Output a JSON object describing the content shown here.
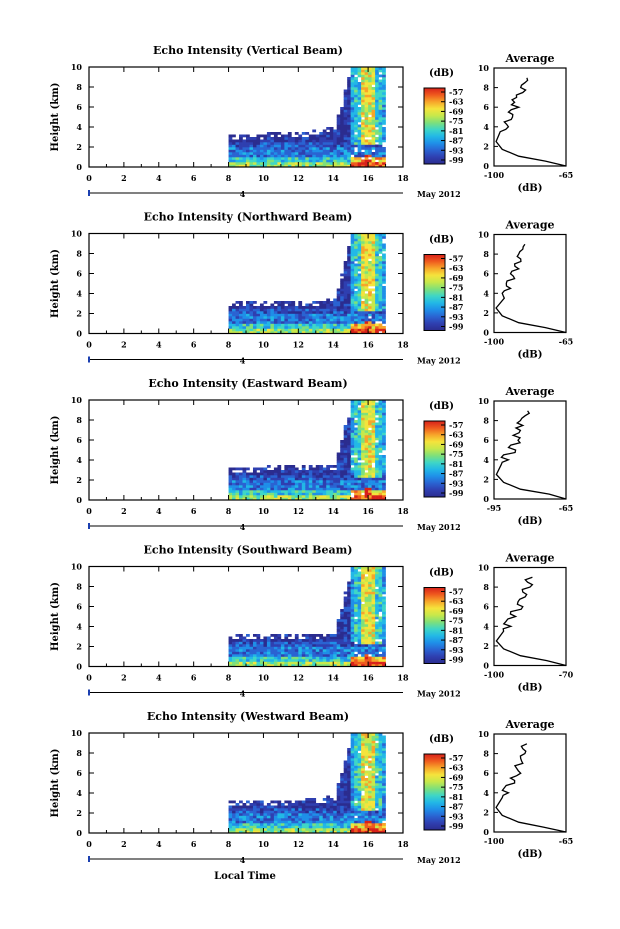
{
  "colors": {
    "colormap": [
      "#2b2c8f",
      "#2f3fb0",
      "#2a63d2",
      "#1f8fe8",
      "#22b8e6",
      "#3fd6c6",
      "#7fe07a",
      "#c7e84b",
      "#f5e33c",
      "#f7a52a",
      "#ef5a1e",
      "#d8211a"
    ]
  },
  "global": {
    "xlabel": "Local Time",
    "month_label": "May 2012",
    "xticks": [
      "0",
      "2",
      "4",
      "6",
      "8",
      "10",
      "12",
      "14",
      "16",
      "18"
    ],
    "day_marker": "4",
    "ylabel": "Height (km)",
    "yticks": [
      "0",
      "2",
      "4",
      "6",
      "8",
      "10"
    ],
    "cb_unit": "(dB)",
    "avg_title": "Average",
    "avg_xlabel": "(dB)"
  },
  "panels": [
    {
      "title": "Echo Intensity (Vertical Beam)",
      "cb_ticks": [
        "-57",
        "-63",
        "-69",
        "-75",
        "-81",
        "-87",
        "-93",
        "-99"
      ],
      "avg_xmin": "-100",
      "avg_xmax": "-65"
    },
    {
      "title": "Echo Intensity (Northward Beam)",
      "cb_ticks": [
        "-57",
        "-63",
        "-69",
        "-75",
        "-81",
        "-87",
        "-93",
        "-99"
      ],
      "avg_xmin": "-100",
      "avg_xmax": "-65"
    },
    {
      "title": "Echo Intensity (Eastward Beam)",
      "cb_ticks": [
        "-57",
        "-63",
        "-69",
        "-75",
        "-81",
        "-87",
        "-93",
        "-99"
      ],
      "avg_xmin": "-95",
      "avg_xmax": "-65"
    },
    {
      "title": "Echo Intensity (Southward Beam)",
      "cb_ticks": [
        "-57",
        "-63",
        "-69",
        "-75",
        "-81",
        "-87",
        "-93",
        "-99"
      ],
      "avg_xmin": "-100",
      "avg_xmax": "-70"
    },
    {
      "title": "Echo Intensity (Westward Beam)",
      "cb_ticks": [
        "-57",
        "-63",
        "-69",
        "-75",
        "-81",
        "-87",
        "-93",
        "-99"
      ],
      "avg_xmin": "-100",
      "avg_xmax": "-65"
    }
  ],
  "chart_data": [
    {
      "type": "heatmap",
      "title": "Echo Intensity (Vertical Beam)",
      "xlabel": "Local Time",
      "ylabel": "Height (km)",
      "xlim": [
        0,
        18
      ],
      "ylim": [
        0,
        10
      ],
      "colorbar_label": "(dB)",
      "colorbar_range": [
        -99,
        -57
      ],
      "echo_start_time": 8,
      "echo_end_time": 17,
      "boundary_layer_top_km": [
        [
          8,
          3.2
        ],
        [
          12,
          3.3
        ],
        [
          14,
          4.0
        ],
        [
          15,
          10
        ],
        [
          17,
          10
        ]
      ]
    },
    {
      "type": "line",
      "title": "Average",
      "xlabel": "(dB)",
      "ylabel": "Height (km)",
      "xlim": [
        -100,
        -65
      ],
      "ylim": [
        0,
        10
      ],
      "series": [
        {
          "x": [
            -65,
            -75,
            -88,
            -96,
            -99,
            -97,
            -93,
            -95,
            -91,
            -93,
            -88,
            -90,
            -89,
            -86,
            -87,
            -85,
            -84
          ],
          "y": [
            0,
            0.5,
            1,
            1.7,
            2.5,
            3.5,
            4,
            4.5,
            5,
            5.5,
            6,
            6.5,
            7,
            7.5,
            8,
            8.5,
            9
          ]
        }
      ]
    },
    {
      "type": "heatmap",
      "title": "Echo Intensity (Northward Beam)",
      "xlabel": "Local Time",
      "ylabel": "Height (km)",
      "xlim": [
        0,
        18
      ],
      "ylim": [
        0,
        10
      ],
      "colorbar_label": "(dB)",
      "colorbar_range": [
        -99,
        -57
      ],
      "echo_start_time": 8,
      "echo_end_time": 17,
      "boundary_layer_top_km": [
        [
          8,
          3.0
        ],
        [
          12,
          3.1
        ],
        [
          14,
          3.3
        ],
        [
          15,
          10
        ],
        [
          17,
          10
        ]
      ]
    },
    {
      "type": "line",
      "title": "Average",
      "xlabel": "(dB)",
      "ylabel": "Height (km)",
      "xlim": [
        -100,
        -65
      ],
      "ylim": [
        0,
        10
      ],
      "series": [
        {
          "x": [
            -65,
            -75,
            -88,
            -96,
            -99,
            -95,
            -96,
            -92,
            -94,
            -90,
            -92,
            -88,
            -90,
            -87,
            -88,
            -86,
            -85
          ],
          "y": [
            0,
            0.5,
            1,
            1.7,
            2.5,
            3.5,
            4,
            4.5,
            5,
            5.5,
            6,
            6.5,
            7,
            7.5,
            8,
            8.5,
            9
          ]
        }
      ]
    },
    {
      "type": "heatmap",
      "title": "Echo Intensity (Eastward Beam)",
      "xlabel": "Local Time",
      "ylabel": "Height (km)",
      "xlim": [
        0,
        18
      ],
      "ylim": [
        0,
        10
      ],
      "colorbar_label": "(dB)",
      "colorbar_range": [
        -99,
        -57
      ],
      "echo_start_time": 8,
      "echo_end_time": 17,
      "boundary_layer_top_km": [
        [
          8,
          3.2
        ],
        [
          12,
          3.3
        ],
        [
          14,
          3.5
        ],
        [
          15,
          10
        ],
        [
          17,
          10
        ]
      ]
    },
    {
      "type": "line",
      "title": "Average",
      "xlabel": "(dB)",
      "ylabel": "Height (km)",
      "xlim": [
        -95,
        -65
      ],
      "ylim": [
        0,
        10
      ],
      "series": [
        {
          "x": [
            -65,
            -72,
            -84,
            -91,
            -94,
            -92,
            -89,
            -91,
            -86,
            -88,
            -85,
            -87,
            -84,
            -83,
            -84,
            -82,
            -81
          ],
          "y": [
            0,
            0.5,
            1,
            1.7,
            2.5,
            3.5,
            4,
            4.5,
            5,
            5.5,
            6,
            6.5,
            7,
            7.5,
            8,
            8.5,
            9
          ]
        }
      ]
    },
    {
      "type": "heatmap",
      "title": "Echo Intensity (Southward Beam)",
      "xlabel": "Local Time",
      "ylabel": "Height (km)",
      "xlim": [
        0,
        18
      ],
      "ylim": [
        0,
        10
      ],
      "colorbar_label": "(dB)",
      "colorbar_range": [
        -99,
        -57
      ],
      "echo_start_time": 8,
      "echo_end_time": 17,
      "boundary_layer_top_km": [
        [
          8,
          3.0
        ],
        [
          12,
          3.1
        ],
        [
          14,
          3.4
        ],
        [
          15,
          10
        ],
        [
          17,
          10
        ]
      ]
    },
    {
      "type": "line",
      "title": "Average",
      "xlabel": "(dB)",
      "ylabel": "Height (km)",
      "xlim": [
        -100,
        -70
      ],
      "ylim": [
        0,
        10
      ],
      "series": [
        {
          "x": [
            -70,
            -78,
            -89,
            -96,
            -99,
            -96,
            -93,
            -95,
            -91,
            -93,
            -88,
            -90,
            -87,
            -88,
            -85,
            -86,
            -84
          ],
          "y": [
            0,
            0.5,
            1,
            1.7,
            2.5,
            3.5,
            4,
            4.5,
            5,
            5.5,
            6,
            6.5,
            7,
            7.5,
            8,
            8.5,
            9
          ]
        }
      ]
    },
    {
      "type": "heatmap",
      "title": "Echo Intensity (Westward Beam)",
      "xlabel": "Local Time",
      "ylabel": "Height (km)",
      "xlim": [
        0,
        18
      ],
      "ylim": [
        0,
        10
      ],
      "colorbar_label": "(dB)",
      "colorbar_range": [
        -99,
        -57
      ],
      "echo_start_time": 8,
      "echo_end_time": 17,
      "boundary_layer_top_km": [
        [
          8,
          3.1
        ],
        [
          12,
          3.2
        ],
        [
          14,
          3.6
        ],
        [
          15,
          10
        ],
        [
          17,
          10
        ]
      ]
    },
    {
      "type": "line",
      "title": "Average",
      "xlabel": "(dB)",
      "ylabel": "Height (km)",
      "xlim": [
        -100,
        -65
      ],
      "ylim": [
        0,
        10
      ],
      "series": [
        {
          "x": [
            -65,
            -76,
            -88,
            -96,
            -99,
            -96,
            -93,
            -95,
            -90,
            -92,
            -87,
            -89,
            -86,
            -87,
            -85,
            -86,
            -84
          ],
          "y": [
            0,
            0.5,
            1,
            1.7,
            2.5,
            3.5,
            4,
            4.5,
            5,
            5.5,
            6,
            6.5,
            7,
            7.5,
            8,
            8.5,
            9
          ]
        }
      ]
    }
  ]
}
